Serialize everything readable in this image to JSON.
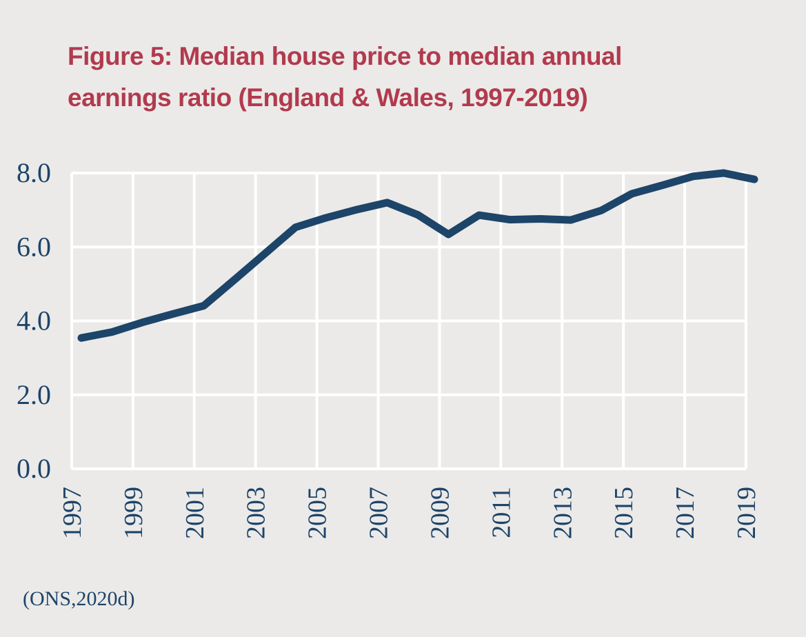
{
  "chart_data": {
    "type": "line",
    "title_lines": [
      "Figure 5: Median house price to median annual",
      "earnings ratio (England & Wales, 1997-2019)"
    ],
    "xlabel": "",
    "ylabel": "",
    "x": [
      1997,
      1998,
      1999,
      2000,
      2001,
      2002,
      2003,
      2004,
      2005,
      2006,
      2007,
      2008,
      2009,
      2010,
      2011,
      2012,
      2013,
      2014,
      2015,
      2016,
      2017,
      2018,
      2019
    ],
    "series": [
      {
        "name": "Median house price to median annual earnings ratio",
        "values": [
          3.54,
          3.7,
          3.96,
          4.19,
          4.41,
          5.11,
          5.82,
          6.53,
          6.79,
          7.01,
          7.2,
          6.87,
          6.34,
          6.86,
          6.74,
          6.76,
          6.73,
          6.99,
          7.44,
          7.67,
          7.91,
          8.0,
          7.83
        ]
      }
    ],
    "x_ticks": [
      "1997",
      "1999",
      "2001",
      "2003",
      "2005",
      "2007",
      "2009",
      "2011",
      "2013",
      "2015",
      "2017",
      "2019"
    ],
    "y_ticks": [
      "0.0",
      "2.0",
      "4.0",
      "6.0",
      "8.0"
    ],
    "ylim": [
      0,
      8
    ],
    "xlim": [
      1997,
      2019
    ],
    "grid": true,
    "colors": {
      "line": "#1d4469",
      "grid": "#ffffff",
      "title": "#b23a4e",
      "text": "#1d4469"
    }
  },
  "source": "(ONS,2020d)"
}
